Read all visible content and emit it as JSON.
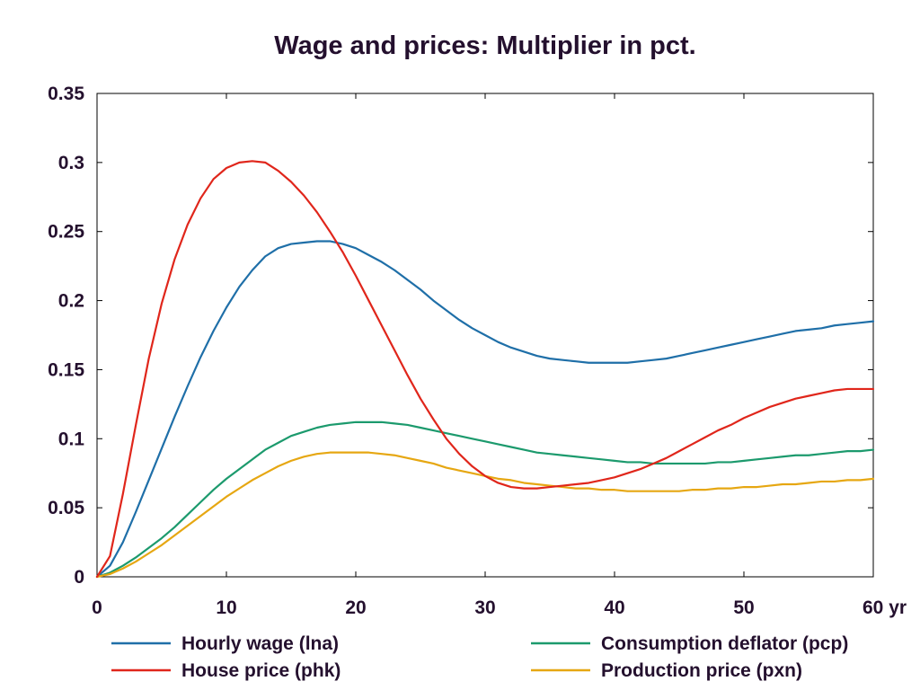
{
  "chart_data": {
    "type": "line",
    "title": "Wage and prices: Multiplier in pct.",
    "xlabel": "",
    "ylabel": "",
    "x_unit_label": "yr",
    "xlim": [
      0,
      60
    ],
    "ylim": [
      0,
      0.35
    ],
    "x_ticks": [
      0,
      10,
      20,
      30,
      40,
      50,
      60
    ],
    "x_tick_labels": [
      "0",
      "10",
      "20",
      "30",
      "40",
      "50",
      "60 yr"
    ],
    "y_ticks": [
      0,
      0.05,
      0.1,
      0.15,
      0.2,
      0.25,
      0.3,
      0.35
    ],
    "y_tick_labels": [
      "0",
      "0.05",
      "0.1",
      "0.15",
      "0.2",
      "0.25",
      "0.3",
      "0.35"
    ],
    "grid": false,
    "legend_position": "bottom",
    "x": [
      0,
      1,
      2,
      3,
      4,
      5,
      6,
      7,
      8,
      9,
      10,
      11,
      12,
      13,
      14,
      15,
      16,
      17,
      18,
      19,
      20,
      21,
      22,
      23,
      24,
      25,
      26,
      27,
      28,
      29,
      30,
      31,
      32,
      33,
      34,
      35,
      36,
      37,
      38,
      39,
      40,
      41,
      42,
      43,
      44,
      45,
      46,
      47,
      48,
      49,
      50,
      51,
      52,
      53,
      54,
      55,
      56,
      57,
      58,
      59,
      60
    ],
    "series": [
      {
        "name": "Hourly wage (lna)",
        "color": "#1f6fa8",
        "values": [
          0,
          0.008,
          0.025,
          0.047,
          0.07,
          0.093,
          0.116,
          0.138,
          0.159,
          0.178,
          0.195,
          0.21,
          0.222,
          0.232,
          0.238,
          0.241,
          0.242,
          0.243,
          0.243,
          0.241,
          0.238,
          0.233,
          0.228,
          0.222,
          0.215,
          0.208,
          0.2,
          0.193,
          0.186,
          0.18,
          0.175,
          0.17,
          0.166,
          0.163,
          0.16,
          0.158,
          0.157,
          0.156,
          0.155,
          0.155,
          0.155,
          0.155,
          0.156,
          0.157,
          0.158,
          0.16,
          0.162,
          0.164,
          0.166,
          0.168,
          0.17,
          0.172,
          0.174,
          0.176,
          0.178,
          0.179,
          0.18,
          0.182,
          0.183,
          0.184,
          0.185
        ]
      },
      {
        "name": "House price (phk)",
        "color": "#e0261b",
        "values": [
          0,
          0.015,
          0.06,
          0.11,
          0.158,
          0.198,
          0.23,
          0.255,
          0.274,
          0.288,
          0.296,
          0.3,
          0.301,
          0.3,
          0.294,
          0.286,
          0.276,
          0.264,
          0.25,
          0.235,
          0.218,
          0.2,
          0.182,
          0.164,
          0.146,
          0.129,
          0.114,
          0.1,
          0.089,
          0.08,
          0.073,
          0.068,
          0.065,
          0.064,
          0.064,
          0.065,
          0.066,
          0.067,
          0.068,
          0.07,
          0.072,
          0.075,
          0.078,
          0.082,
          0.086,
          0.091,
          0.096,
          0.101,
          0.106,
          0.11,
          0.115,
          0.119,
          0.123,
          0.126,
          0.129,
          0.131,
          0.133,
          0.135,
          0.136,
          0.136,
          0.136
        ]
      },
      {
        "name": "Consumption deflator (pcp)",
        "color": "#1c9a6d",
        "values": [
          0,
          0.003,
          0.008,
          0.014,
          0.021,
          0.028,
          0.036,
          0.045,
          0.054,
          0.063,
          0.071,
          0.078,
          0.085,
          0.092,
          0.097,
          0.102,
          0.105,
          0.108,
          0.11,
          0.111,
          0.112,
          0.112,
          0.112,
          0.111,
          0.11,
          0.108,
          0.106,
          0.104,
          0.102,
          0.1,
          0.098,
          0.096,
          0.094,
          0.092,
          0.09,
          0.089,
          0.088,
          0.087,
          0.086,
          0.085,
          0.084,
          0.083,
          0.083,
          0.082,
          0.082,
          0.082,
          0.082,
          0.082,
          0.083,
          0.083,
          0.084,
          0.085,
          0.086,
          0.087,
          0.088,
          0.088,
          0.089,
          0.09,
          0.091,
          0.091,
          0.092
        ]
      },
      {
        "name": "Production price (pxn)",
        "color": "#e6a712",
        "values": [
          0,
          0.002,
          0.006,
          0.011,
          0.017,
          0.023,
          0.03,
          0.037,
          0.044,
          0.051,
          0.058,
          0.064,
          0.07,
          0.075,
          0.08,
          0.084,
          0.087,
          0.089,
          0.09,
          0.09,
          0.09,
          0.09,
          0.089,
          0.088,
          0.086,
          0.084,
          0.082,
          0.079,
          0.077,
          0.075,
          0.073,
          0.071,
          0.07,
          0.068,
          0.067,
          0.066,
          0.065,
          0.064,
          0.064,
          0.063,
          0.063,
          0.062,
          0.062,
          0.062,
          0.062,
          0.062,
          0.063,
          0.063,
          0.064,
          0.064,
          0.065,
          0.065,
          0.066,
          0.067,
          0.067,
          0.068,
          0.069,
          0.069,
          0.07,
          0.07,
          0.071
        ]
      }
    ]
  }
}
